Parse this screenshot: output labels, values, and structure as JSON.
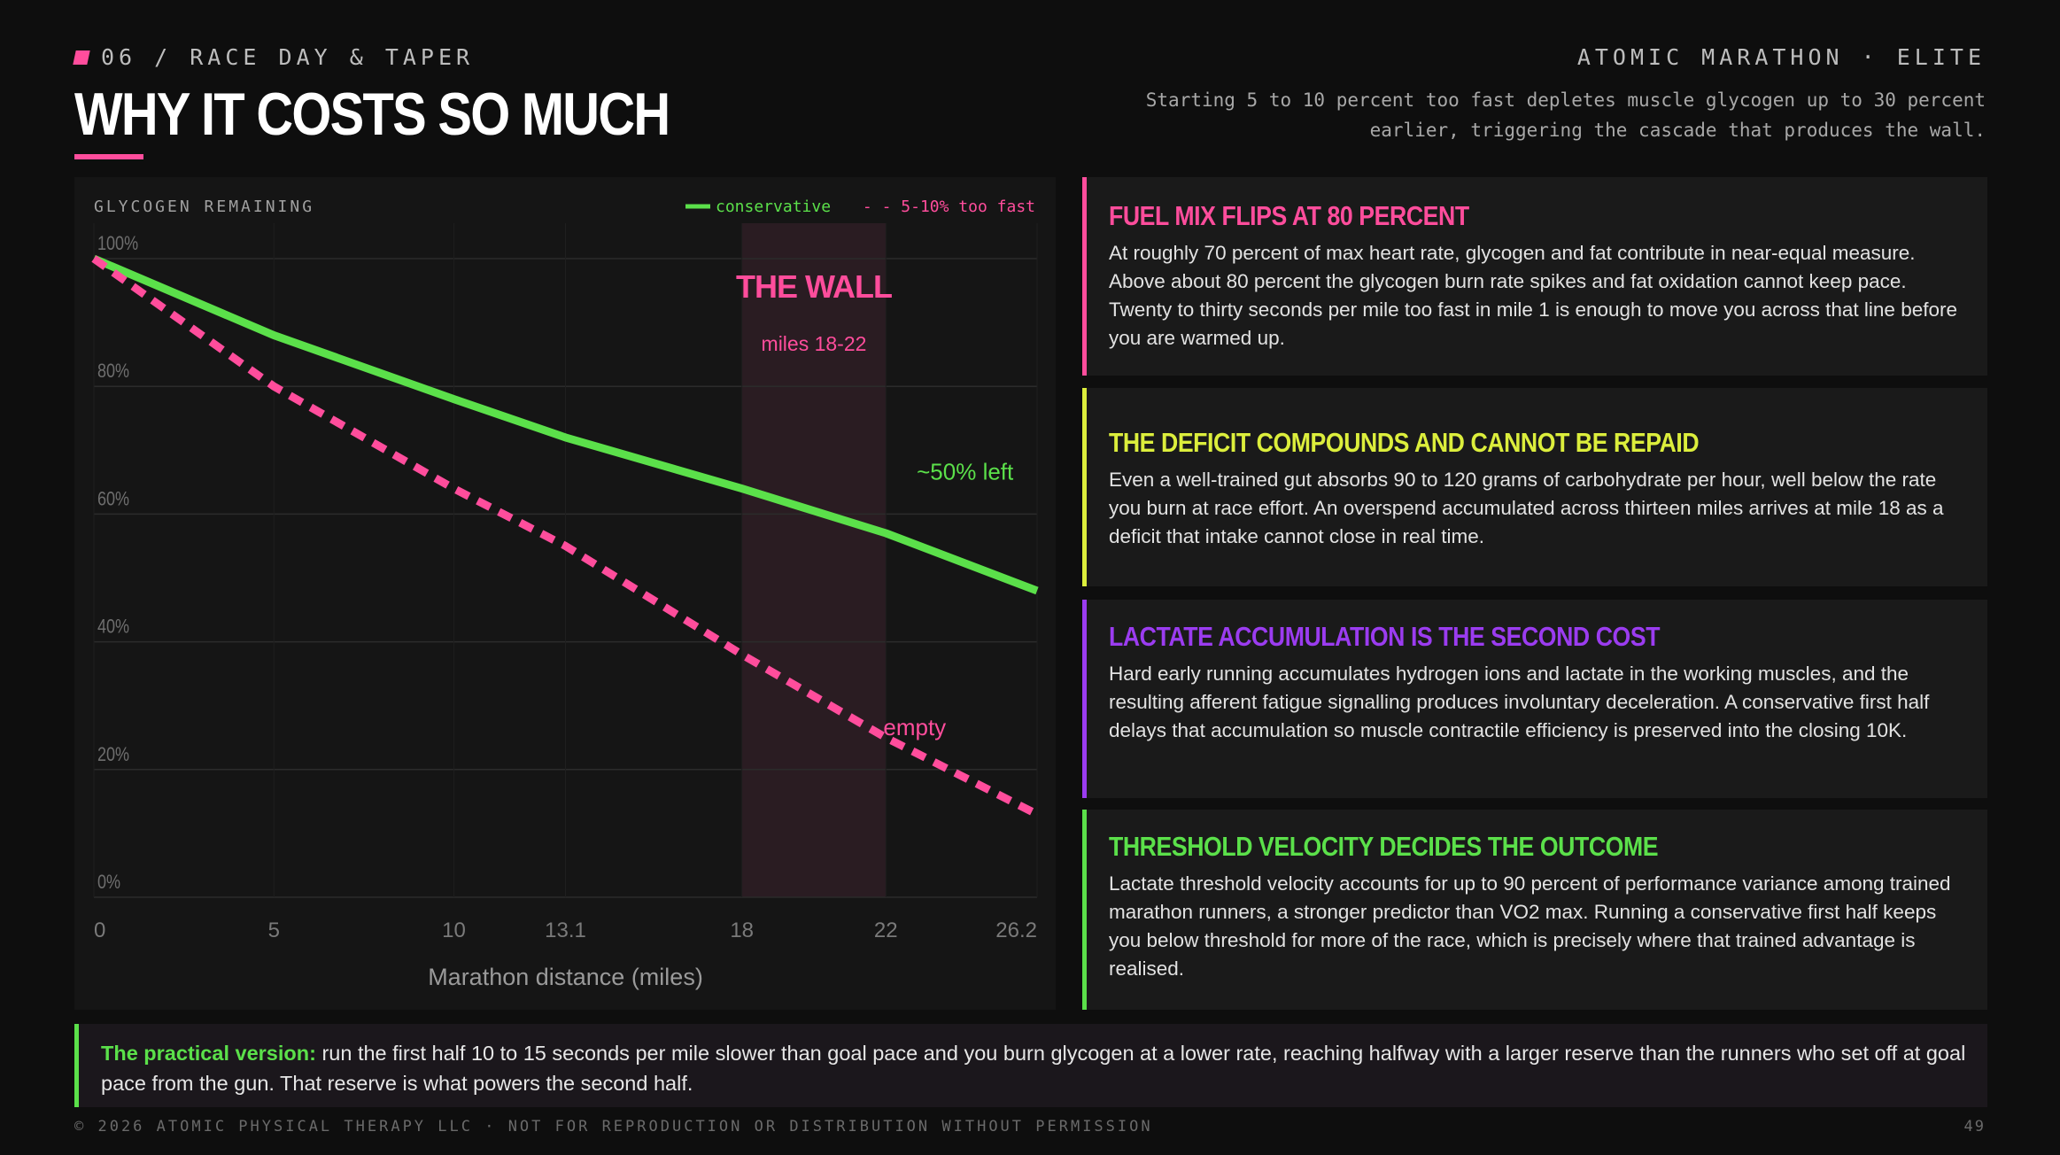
{
  "header": {
    "eyebrow": "06 / RACE DAY & TAPER",
    "brand": "ATOMIC MARATHON · ELITE",
    "title": "WHY IT COSTS SO MUCH",
    "subtitle": "Starting 5 to 10 percent too fast depletes muscle glycogen up to 30 percent earlier, triggering the cascade that produces the wall."
  },
  "colors": {
    "pink": "#ff4d9c",
    "green": "#5be04a",
    "yellow": "#dcee3c",
    "purple": "#9b3cf0"
  },
  "chart_data": {
    "type": "line",
    "title": "GLYCOGEN REMAINING",
    "xlabel": "Marathon distance (miles)",
    "ylabel": "",
    "x_ticks": [
      0,
      5,
      10,
      13.1,
      18,
      22,
      26.2
    ],
    "x_tick_labels": [
      "0",
      "5",
      "10",
      "13.1",
      "18",
      "22",
      "26.2"
    ],
    "y_ticks": [
      0,
      20,
      40,
      60,
      80,
      100
    ],
    "y_tick_labels": [
      "0%",
      "20%",
      "40%",
      "60%",
      "80%",
      "100%"
    ],
    "xlim": [
      0,
      26.2
    ],
    "ylim": [
      0,
      100
    ],
    "grid": true,
    "legend_position": "top-right",
    "series": [
      {
        "name": "conservative",
        "style": "solid",
        "color": "#5be04a",
        "x": [
          0,
          5,
          10,
          13.1,
          18,
          22,
          26.2
        ],
        "y": [
          100,
          88,
          78,
          72,
          64,
          57,
          48
        ]
      },
      {
        "name": "5-10% too fast",
        "style": "dashed",
        "color": "#ff4d9c",
        "x": [
          0,
          5,
          10,
          13.1,
          18,
          22,
          26.2
        ],
        "y": [
          100,
          80,
          64,
          55,
          38,
          25,
          13
        ]
      }
    ],
    "legend_labels": [
      "conservative",
      "- - 5-10% too fast"
    ],
    "highlight_band": {
      "x_start": 18,
      "x_end": 22,
      "label": "THE WALL",
      "sublabel": "miles 18-22"
    },
    "annotations": [
      {
        "text": "~50% left",
        "x": 24.2,
        "y": 64,
        "color": "#5be04a"
      },
      {
        "text": "empty",
        "x": 22.8,
        "y": 24,
        "color": "#ff4d9c"
      }
    ]
  },
  "cards": [
    {
      "title": "FUEL MIX FLIPS AT 80 PERCENT",
      "color": "#ff4d9c",
      "body": "At roughly 70 percent of max heart rate, glycogen and fat contribute in near-equal measure. Above about 80 percent the glycogen burn rate spikes and fat oxidation cannot keep pace. Twenty to thirty seconds per mile too fast in mile 1 is enough to move you across that line before you are warmed up."
    },
    {
      "title": "THE DEFICIT COMPOUNDS AND CANNOT BE REPAID",
      "color": "#dcee3c",
      "body": "Even a well-trained gut absorbs 90 to 120 grams of carbohydrate per hour, well below the rate you burn at race effort. An overspend accumulated across thirteen miles arrives at mile 18 as a deficit that intake cannot close in real time."
    },
    {
      "title": "LACTATE ACCUMULATION IS THE SECOND COST",
      "color": "#9b3cf0",
      "body": "Hard early running accumulates hydrogen ions and lactate in the working muscles, and the resulting afferent fatigue signalling produces involuntary deceleration. A conservative first half delays that accumulation so muscle contractile efficiency is preserved into the closing 10K."
    },
    {
      "title": "THRESHOLD VELOCITY DECIDES THE OUTCOME",
      "color": "#5be04a",
      "body": "Lactate threshold velocity accounts for up to 90 percent of performance variance among trained marathon runners, a stronger predictor than VO2 max. Running a conservative first half keeps you below threshold for more of the race, which is precisely where that trained advantage is realised."
    }
  ],
  "callout": {
    "lead": "The practical version:",
    "text": " run the first half 10 to 15 seconds per mile slower than goal pace and you burn glycogen at a lower rate, reaching halfway with a larger reserve than the runners who set off at goal pace from the gun. That reserve is what powers the second half."
  },
  "footer": {
    "copyright": "© 2026 ATOMIC PHYSICAL THERAPY LLC · NOT FOR REPRODUCTION OR DISTRIBUTION WITHOUT PERMISSION",
    "page": "49"
  }
}
